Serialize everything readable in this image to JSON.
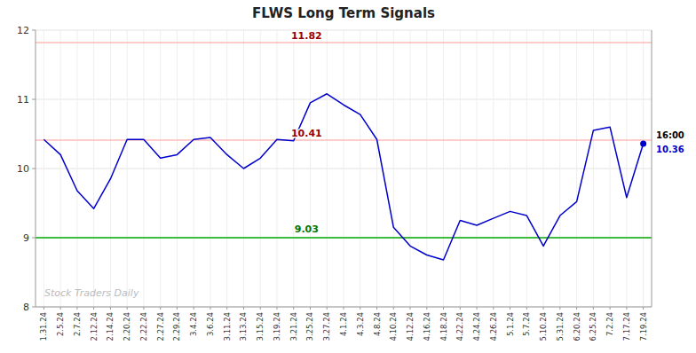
{
  "chart_data": {
    "type": "line",
    "title": "FLWS Long Term Signals",
    "categories": [
      "1.31.24",
      "2.5.24",
      "2.7.24",
      "2.12.24",
      "2.14.24",
      "2.20.24",
      "2.22.24",
      "2.27.24",
      "2.29.24",
      "3.4.24",
      "3.6.24",
      "3.11.24",
      "3.13.24",
      "3.15.24",
      "3.19.24",
      "3.21.24",
      "3.25.24",
      "3.27.24",
      "4.1.24",
      "4.3.24",
      "4.8.24",
      "4.10.24",
      "4.12.24",
      "4.16.24",
      "4.18.24",
      "4.22.24",
      "4.24.24",
      "4.26.24",
      "5.1.24",
      "5.7.24",
      "5.10.24",
      "5.31.24",
      "6.20.24",
      "6.25.24",
      "7.2.24",
      "7.17.24",
      "7.19.24"
    ],
    "values": [
      10.42,
      10.2,
      9.68,
      9.42,
      9.85,
      10.42,
      10.42,
      10.15,
      10.2,
      10.42,
      10.45,
      10.2,
      10.0,
      10.15,
      10.42,
      10.4,
      10.95,
      11.08,
      10.92,
      10.78,
      10.42,
      9.15,
      8.88,
      8.75,
      8.68,
      9.25,
      9.18,
      9.28,
      9.38,
      9.32,
      8.88,
      9.32,
      9.52,
      10.55,
      10.6,
      9.58,
      10.36
    ],
    "color": "#0000cc",
    "ylim": [
      8,
      12
    ],
    "yticks": [
      8,
      9,
      10,
      11,
      12
    ],
    "grid": true,
    "hlines": [
      {
        "value": 11.82,
        "color": "#ffbbbb"
      },
      {
        "value": 10.41,
        "color": "#ffbbbb"
      },
      {
        "value": 9.0,
        "color": "#00aa00"
      }
    ],
    "annotations": [
      {
        "text": "11.82",
        "value": 11.82,
        "color": "#990000"
      },
      {
        "text": "10.41",
        "value": 10.41,
        "color": "#990000"
      },
      {
        "text": "9.03",
        "value": 9.03,
        "color": "#007700"
      }
    ],
    "last_point_label": {
      "time": "16:00",
      "text": "10.36",
      "value": 10.36,
      "color": "#0000cc"
    },
    "watermark": {
      "text": "Stock Traders Daily",
      "color": "#bbbbbb"
    }
  }
}
